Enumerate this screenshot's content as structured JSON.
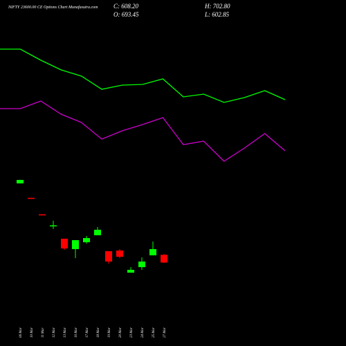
{
  "chart_data": [
    {
      "type": "candlestick",
      "title": "NIFTY 23600.00 CE Options Chart Munafasutra.com",
      "info": [
        "C: 608.20",
        "H: 702.80",
        "O: 693.45",
        "L: 602.85"
      ],
      "categories": [
        "06 Mar",
        "10 Mar",
        "11 Mar",
        "12 Mar",
        "13 Mar",
        "16 Mar",
        "17 Mar",
        "18 Mar",
        "19 Mar",
        "20 Mar",
        "23 Mar",
        "24 Mar",
        "25 Mar",
        "27 Mar"
      ],
      "open": [
        1485,
        1325,
        1142,
        1015,
        872,
        757,
        833,
        910,
        734,
        741,
        496,
        557,
        688,
        693.45
      ],
      "high": [
        1525,
        1326,
        1143,
        1071,
        872,
        856,
        902,
        1002,
        734,
        757,
        557,
        665,
        841,
        702.8
      ],
      "low": [
        1483,
        1319,
        1137,
        979,
        749,
        657,
        818,
        910,
        596,
        657,
        496,
        527,
        688,
        602.85
      ],
      "close": [
        1523,
        1320,
        1138,
        1020,
        764,
        856,
        879,
        971,
        619,
        672,
        527,
        619,
        757,
        608.2
      ],
      "up_color": "#00ff00",
      "down_color": "#ff0000",
      "ylim": [
        450,
        1600
      ]
    },
    {
      "type": "line",
      "series": [
        {
          "color": "#00ff00",
          "values": [
            429,
            429,
            413,
            399,
            390,
            371,
            377,
            378,
            386,
            360,
            364,
            352,
            359,
            369,
            356
          ]
        },
        {
          "color": "#cc00cc",
          "values": [
            343,
            343,
            354,
            335,
            323,
            299,
            311,
            320,
            330,
            291,
            296,
            267,
            286,
            307,
            282
          ]
        }
      ],
      "ylim": [
        250,
        500
      ]
    }
  ]
}
